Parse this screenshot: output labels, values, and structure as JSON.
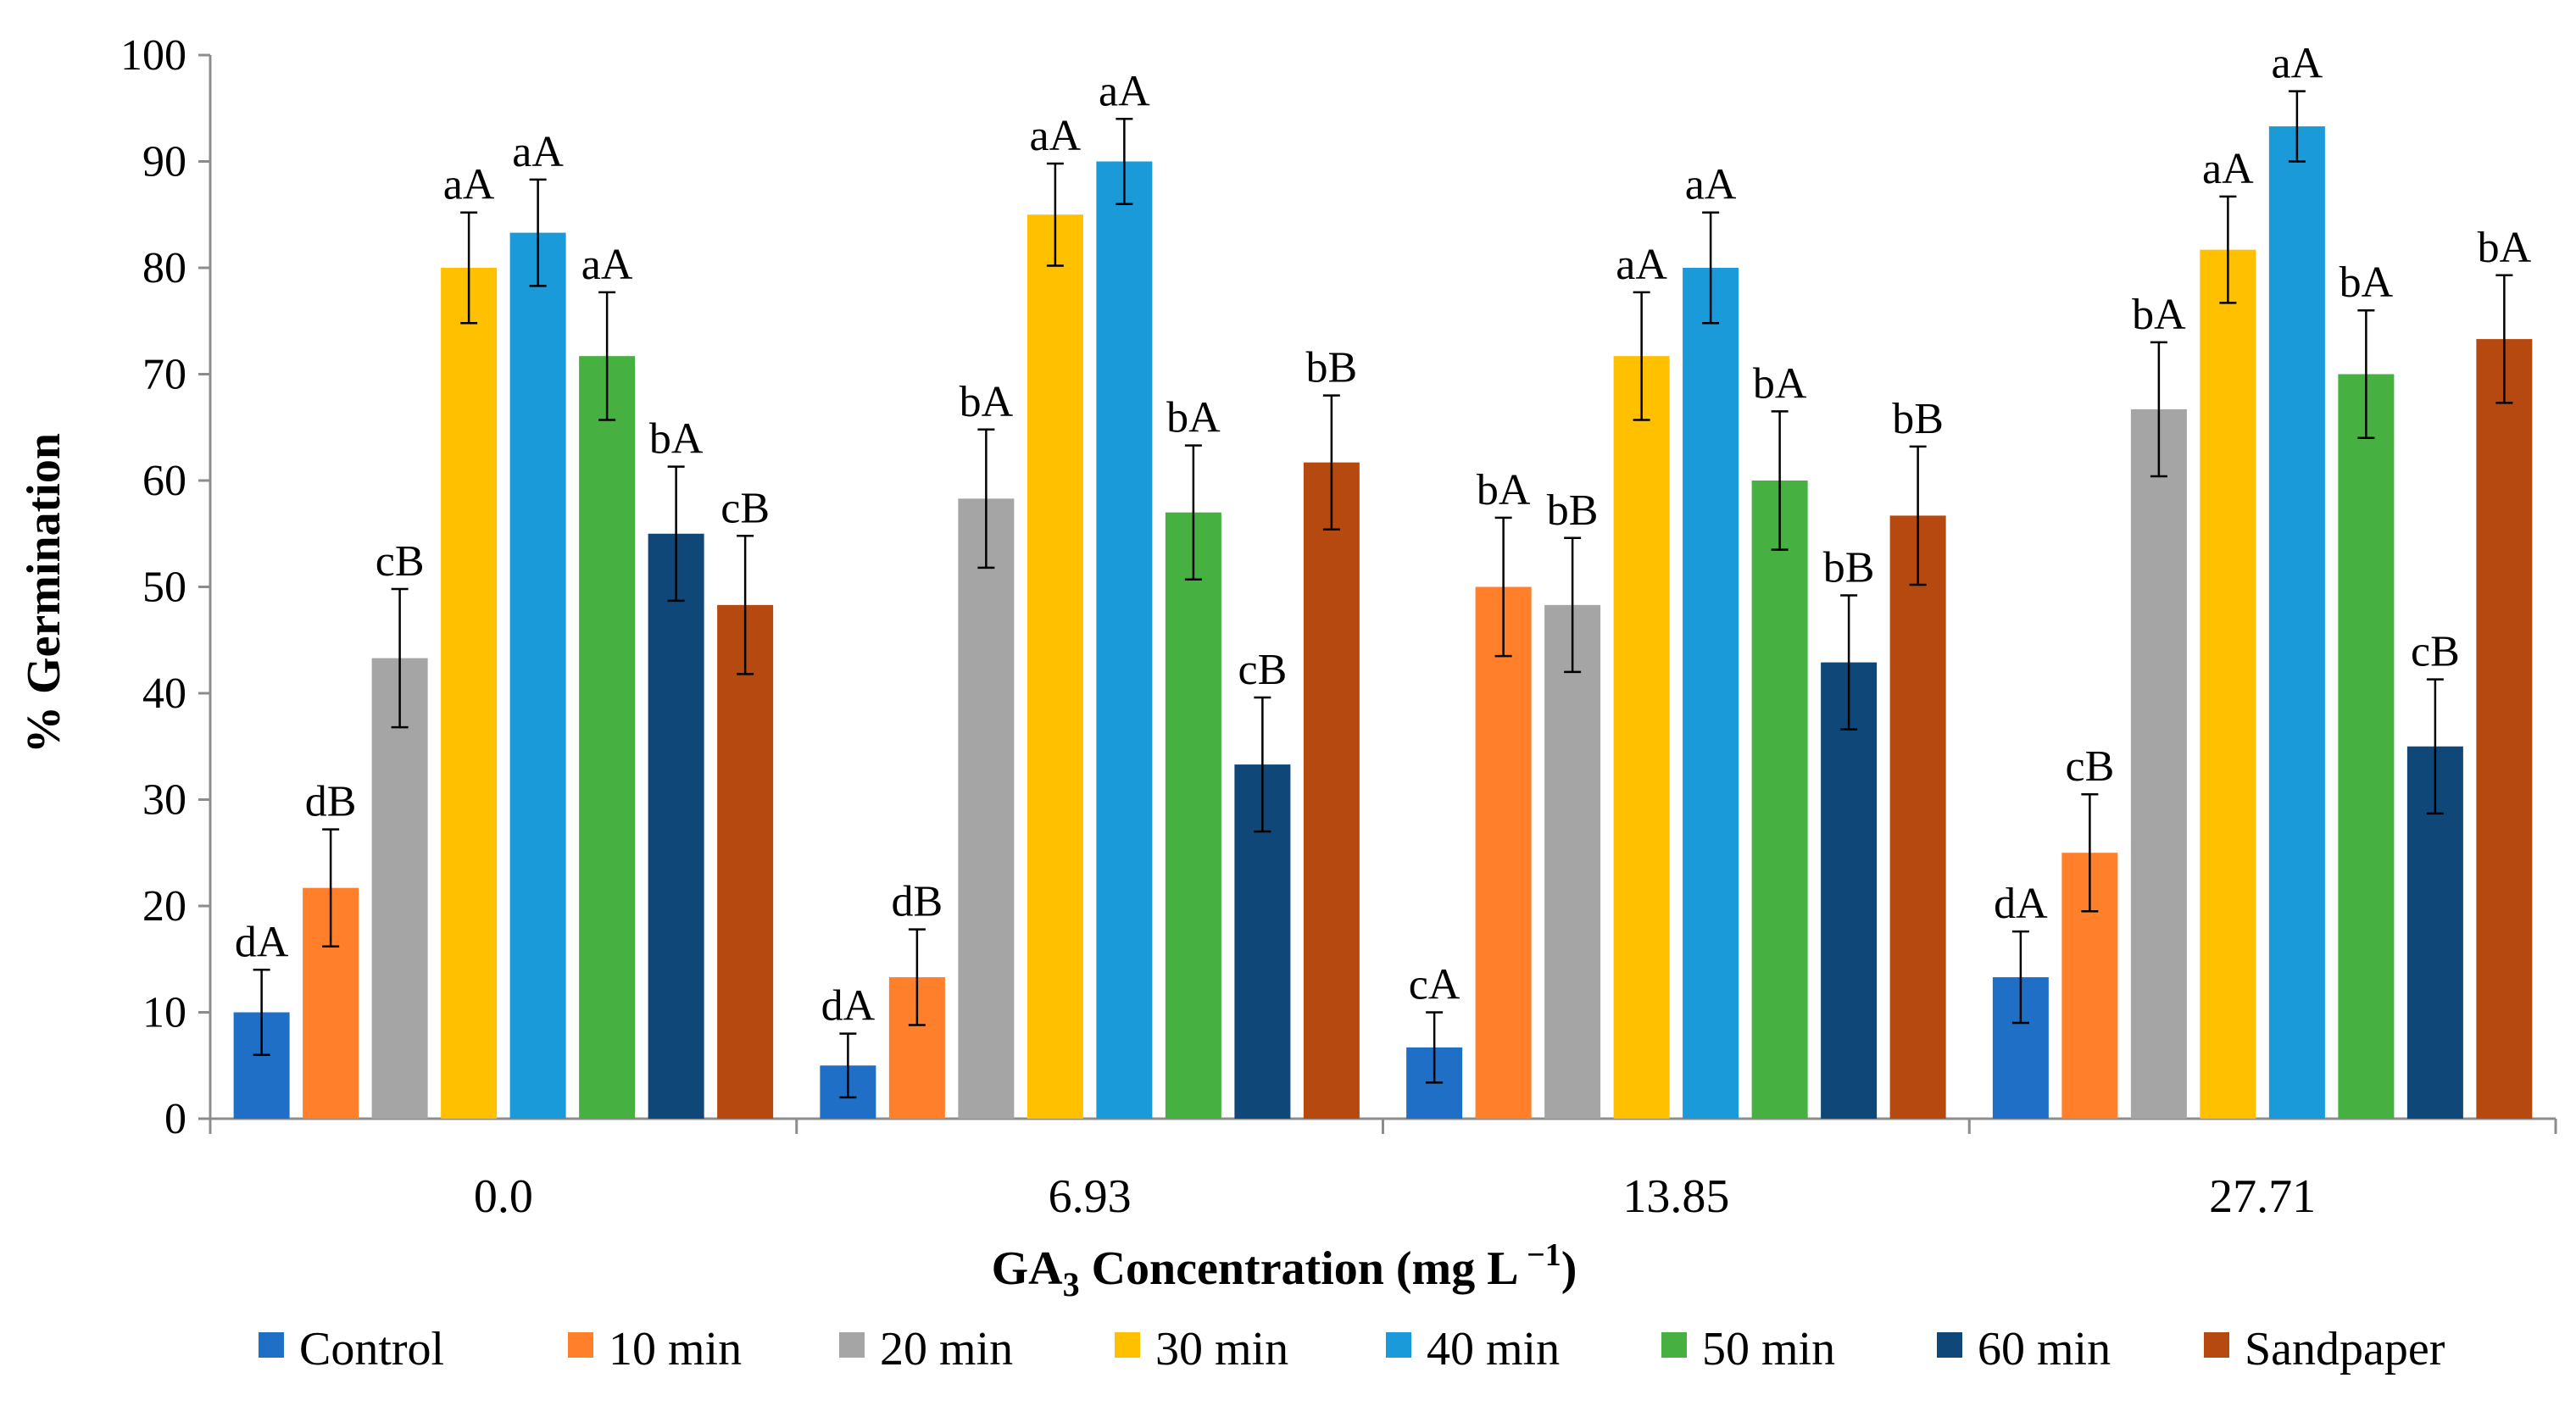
{
  "chart_data": {
    "type": "bar",
    "title": "",
    "xlabel_main": "GA",
    "xlabel_sub": "3",
    "xlabel_rest": " Concentration (mg L",
    "xlabel_sup": " −1",
    "xlabel_end": ")",
    "ylabel": "% Germination",
    "ylim": [
      0,
      100
    ],
    "yticks": [
      0,
      10,
      20,
      30,
      40,
      50,
      60,
      70,
      80,
      90,
      100
    ],
    "categories": [
      "0.0",
      "6.93",
      "13.85",
      "27.71"
    ],
    "legend_position": "bottom",
    "series": [
      {
        "name": "Control",
        "color": "#1f6fc6",
        "values": [
          10,
          5,
          6.7,
          13.3
        ],
        "errors": [
          4,
          3,
          3.3,
          4.3
        ],
        "labels": [
          "dA",
          "dA",
          "cA",
          "dA"
        ]
      },
      {
        "name": "10 min",
        "color": "#ff7f2a",
        "values": [
          21.7,
          13.3,
          50,
          25
        ],
        "errors": [
          5.5,
          4.5,
          6.5,
          5.5
        ],
        "labels": [
          "dB",
          "dB",
          "bA",
          "cB"
        ]
      },
      {
        "name": "20 min",
        "color": "#a5a5a5",
        "values": [
          43.3,
          58.3,
          48.3,
          66.7
        ],
        "errors": [
          6.5,
          6.5,
          6.3,
          6.3
        ],
        "labels": [
          "cB",
          "bA",
          "bB",
          "bA"
        ]
      },
      {
        "name": "30 min",
        "color": "#ffc000",
        "values": [
          80,
          85,
          71.7,
          81.7
        ],
        "errors": [
          5.2,
          4.8,
          6,
          5
        ],
        "labels": [
          "aA",
          "aA",
          "aA",
          "aA"
        ]
      },
      {
        "name": "40 min",
        "color": "#1a9ad9",
        "values": [
          83.3,
          90,
          80,
          93.3
        ],
        "errors": [
          5,
          4,
          5.2,
          3.3
        ],
        "labels": [
          "aA",
          "aA",
          "aA",
          "aA"
        ]
      },
      {
        "name": "50 min",
        "color": "#46b040",
        "values": [
          71.7,
          57,
          60,
          70
        ],
        "errors": [
          6,
          6.3,
          6.5,
          6
        ],
        "labels": [
          "aA",
          "bA",
          "bA",
          "bA"
        ]
      },
      {
        "name": "60 min",
        "color": "#0e4778",
        "values": [
          55,
          33.3,
          42.9,
          35
        ],
        "errors": [
          6.3,
          6.3,
          6.3,
          6.3
        ],
        "labels": [
          "bA",
          "cB",
          "bB",
          "cB"
        ]
      },
      {
        "name": "Sandpaper",
        "color": "#b5490f",
        "values": [
          48.3,
          61.7,
          56.7,
          73.3
        ],
        "errors": [
          6.5,
          6.3,
          6.5,
          6
        ],
        "labels": [
          "cB",
          "bB",
          "bB",
          "bA"
        ]
      }
    ]
  }
}
